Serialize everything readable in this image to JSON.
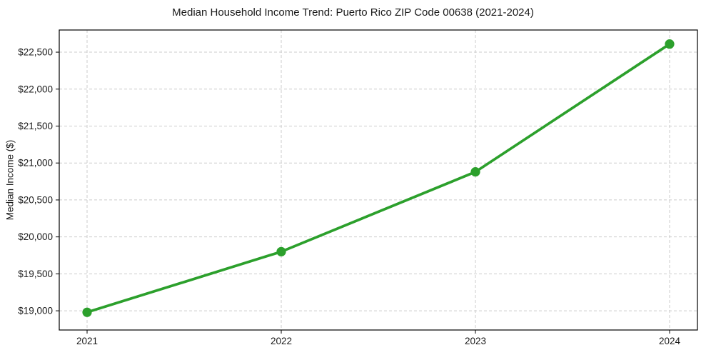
{
  "figure": {
    "title": "Median Household Income Trend: Puerto Rico ZIP Code 00638 (2021-2024)"
  },
  "chart_data": {
    "type": "line",
    "title": "Median Household Income Trend: Puerto Rico ZIP Code 00638 (2021-2024)",
    "xlabel": "",
    "ylabel": "Median Income ($)",
    "categories": [
      "2021",
      "2022",
      "2023",
      "2024"
    ],
    "series": [
      {
        "name": "Median Household Income",
        "values": [
          18980,
          19800,
          20880,
          22610
        ]
      }
    ],
    "yticks": [
      19000,
      19500,
      20000,
      20500,
      21000,
      21500,
      22000,
      22500
    ],
    "ytick_labels": [
      "$19,000",
      "$19,500",
      "$20,000",
      "$20,500",
      "$21,000",
      "$21,500",
      "$22,000",
      "$22,500"
    ],
    "ylim": [
      18740,
      22800
    ],
    "grid": true,
    "grid_style": "dashed",
    "legend": "none",
    "colors": {
      "line": "#2ca02c",
      "marker": "#2ca02c",
      "grid": "#cccccc",
      "spine": "#000000",
      "tick_text": "#1a1a1a",
      "background": "#ffffff"
    }
  }
}
